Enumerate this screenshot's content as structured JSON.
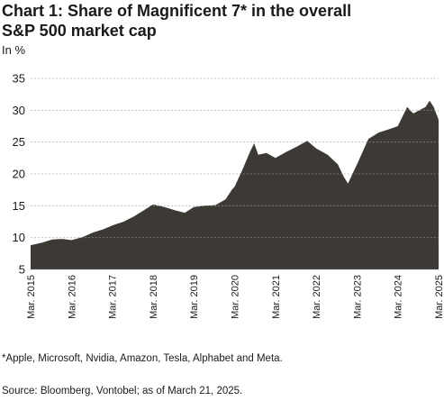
{
  "chart_data": {
    "type": "area",
    "title_line1": "Chart 1: Share of Magnificent 7* in the overall",
    "title_line2": "S&P 500 market cap",
    "ylabel": "In %",
    "ylim": [
      5,
      35
    ],
    "yticks": [
      5,
      10,
      15,
      20,
      25,
      30,
      35
    ],
    "xlim": [
      2015.22,
      2025.22
    ],
    "xticks": [
      {
        "label": "Mar. 2015",
        "value": 2015.22
      },
      {
        "label": "Mar. 2016",
        "value": 2016.22
      },
      {
        "label": "Mar. 2017",
        "value": 2017.22
      },
      {
        "label": "Mar. 2018",
        "value": 2018.22
      },
      {
        "label": "Mar. 2019",
        "value": 2019.22
      },
      {
        "label": "Mar. 2020",
        "value": 2020.22
      },
      {
        "label": "Mar. 2021",
        "value": 2021.22
      },
      {
        "label": "Mar. 2022",
        "value": 2022.22
      },
      {
        "label": "Mar. 2023",
        "value": 2023.22
      },
      {
        "label": "Mar. 2024",
        "value": 2024.22
      },
      {
        "label": "Mar. 2025",
        "value": 2025.22
      }
    ],
    "grid": "horizontal dotted",
    "fill_color": "#3d3935",
    "x": [
      2015.22,
      2015.5,
      2015.75,
      2016.0,
      2016.22,
      2016.5,
      2016.75,
      2017.0,
      2017.22,
      2017.5,
      2017.75,
      2018.0,
      2018.22,
      2018.5,
      2018.75,
      2019.0,
      2019.22,
      2019.5,
      2019.75,
      2020.0,
      2020.15,
      2020.22,
      2020.4,
      2020.6,
      2020.7,
      2020.8,
      2021.0,
      2021.22,
      2021.5,
      2021.75,
      2022.0,
      2022.22,
      2022.5,
      2022.75,
      2022.9,
      2023.0,
      2023.22,
      2023.5,
      2023.75,
      2024.0,
      2024.22,
      2024.45,
      2024.6,
      2024.75,
      2024.9,
      2025.0,
      2025.1,
      2025.22
    ],
    "values": [
      8.8,
      9.2,
      9.7,
      9.8,
      9.6,
      10.1,
      10.8,
      11.3,
      11.9,
      12.5,
      13.3,
      14.3,
      15.2,
      14.8,
      14.3,
      13.9,
      14.8,
      15.0,
      15.1,
      16.0,
      17.5,
      18.0,
      20.5,
      23.5,
      24.8,
      23.0,
      23.3,
      22.5,
      23.5,
      24.3,
      25.2,
      24.0,
      23.0,
      21.5,
      19.5,
      18.5,
      21.5,
      25.5,
      26.5,
      27.0,
      27.5,
      30.5,
      29.5,
      30.0,
      30.5,
      31.5,
      30.5,
      28.5
    ]
  },
  "footnote": "*Apple, Microsoft, Nvidia, Amazon, Tesla, Alphabet and Meta.",
  "source": "Source: Bloomberg, Vontobel; as of March 21, 2025."
}
